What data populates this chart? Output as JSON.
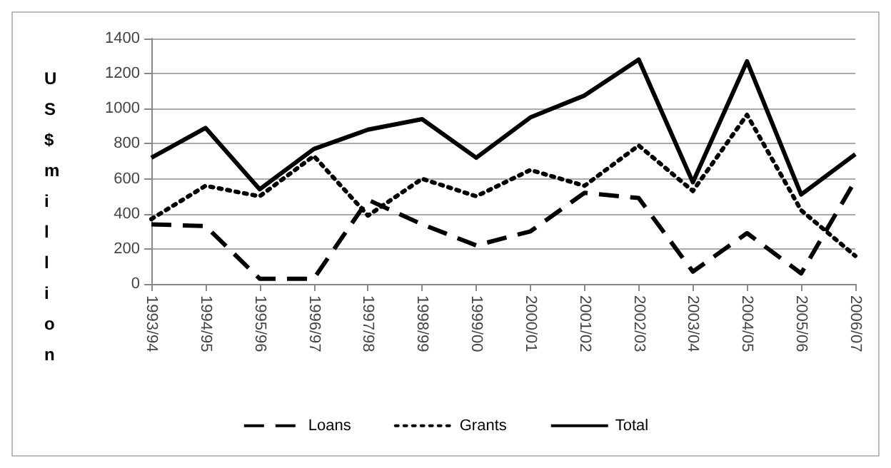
{
  "chart_data": {
    "type": "line",
    "ylabel": "US$ million",
    "categories": [
      "1993/94",
      "1994/95",
      "1995/96",
      "1996/97",
      "1997/98",
      "1998/99",
      "1999/00",
      "2000/01",
      "2001/02",
      "2002/03",
      "2003/04",
      "2004/05",
      "2005/06",
      "2006/07"
    ],
    "series": [
      {
        "name": "Loans",
        "color": "#000000",
        "line_style": "dashed",
        "values": [
          340,
          330,
          30,
          30,
          480,
          340,
          220,
          300,
          520,
          490,
          70,
          290,
          60,
          590
        ]
      },
      {
        "name": "Grants",
        "color": "#000000",
        "line_style": "dotted",
        "values": [
          370,
          560,
          500,
          730,
          390,
          600,
          500,
          650,
          560,
          790,
          530,
          965,
          420,
          160
        ]
      },
      {
        "name": "Total",
        "color": "#000000",
        "line_style": "solid",
        "values": [
          720,
          890,
          540,
          770,
          880,
          940,
          720,
          950,
          1075,
          1280,
          580,
          1270,
          510,
          740
        ]
      }
    ],
    "ylim": [
      0,
      1400
    ],
    "yticks": [
      0,
      200,
      400,
      600,
      800,
      1000,
      1200,
      1400
    ],
    "grid": "y",
    "legend": "bottom",
    "marker": "none"
  }
}
